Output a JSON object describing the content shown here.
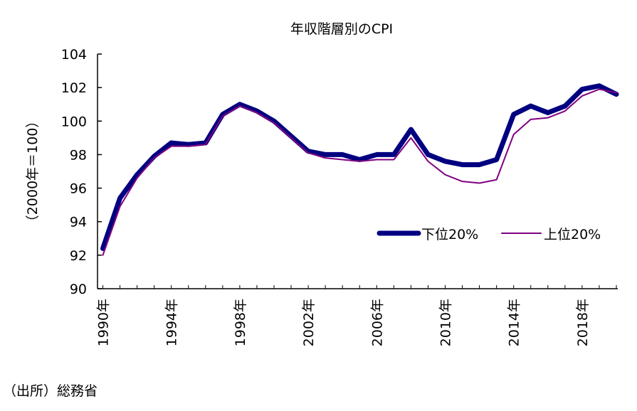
{
  "chart_data": {
    "type": "line",
    "title": "年収階層別のCPI",
    "ylabel": "（2000年＝100）",
    "xlabel": "",
    "ylim": [
      90,
      104
    ],
    "yticks": [
      "90",
      "92",
      "94",
      "96",
      "98",
      "100",
      "102",
      "104"
    ],
    "x": [
      1990,
      1991,
      1992,
      1993,
      1994,
      1995,
      1996,
      1997,
      1998,
      1999,
      2000,
      2001,
      2002,
      2003,
      2004,
      2005,
      2006,
      2007,
      2008,
      2009,
      2010,
      2011,
      2012,
      2013,
      2014,
      2015,
      2016,
      2017,
      2018,
      2019,
      2020
    ],
    "xtick_labels": [
      "1990年",
      "1994年",
      "1998年",
      "2002年",
      "2006年",
      "2010年",
      "2014年",
      "2018年"
    ],
    "legend": "right",
    "grid": false,
    "series": [
      {
        "name": "下位20%",
        "color": "#000080",
        "values": [
          92.4,
          95.4,
          96.8,
          97.9,
          98.7,
          98.6,
          98.7,
          100.4,
          101.0,
          100.6,
          100.0,
          99.1,
          98.2,
          98.0,
          98.0,
          97.7,
          98.0,
          98.0,
          99.5,
          98.0,
          97.6,
          97.4,
          97.4,
          97.7,
          100.4,
          100.9,
          100.5,
          100.9,
          101.9,
          102.1,
          101.6
        ]
      },
      {
        "name": "上位20%",
        "color": "#800080",
        "values": [
          92.0,
          94.9,
          96.6,
          97.8,
          98.5,
          98.5,
          98.6,
          100.3,
          100.9,
          100.5,
          99.9,
          99.0,
          98.1,
          97.8,
          97.7,
          97.6,
          97.7,
          97.7,
          99.0,
          97.6,
          96.8,
          96.4,
          96.3,
          96.5,
          99.2,
          100.1,
          100.2,
          100.6,
          101.5,
          101.9,
          101.7
        ]
      }
    ]
  },
  "source": "（出所）総務省"
}
